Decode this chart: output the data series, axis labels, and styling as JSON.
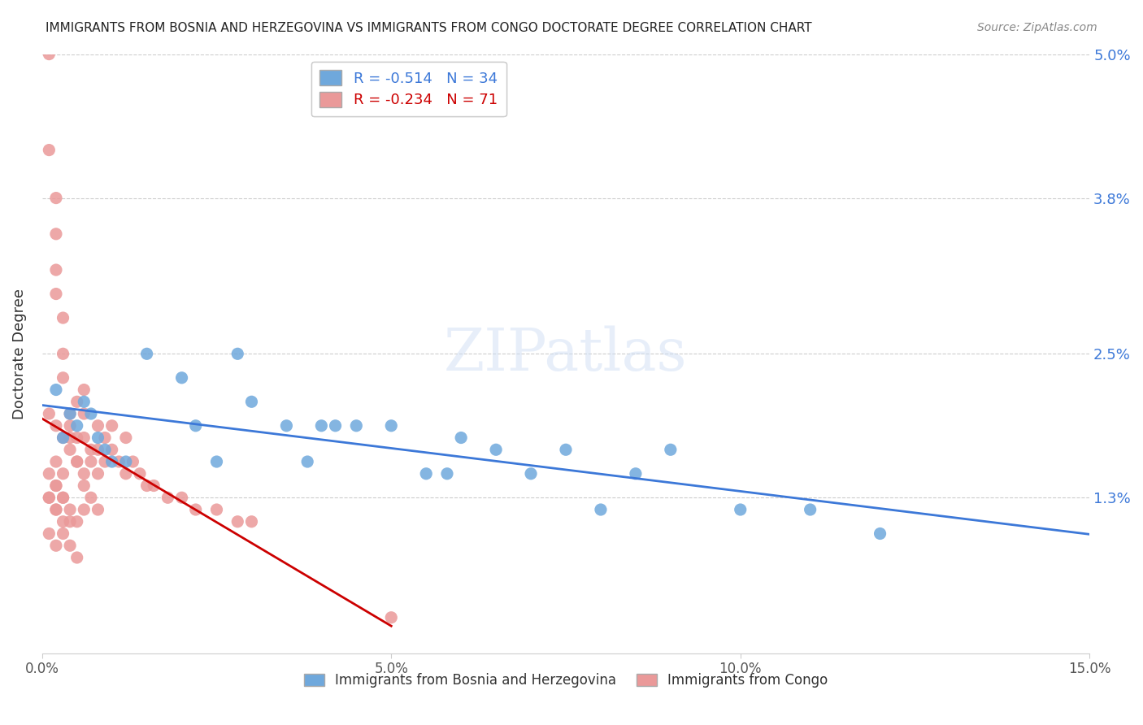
{
  "title": "IMMIGRANTS FROM BOSNIA AND HERZEGOVINA VS IMMIGRANTS FROM CONGO DOCTORATE DEGREE CORRELATION CHART",
  "source": "Source: ZipAtlas.com",
  "xlabel_bosnia": "Immigrants from Bosnia and Herzegovina",
  "xlabel_congo": "Immigrants from Congo",
  "ylabel": "Doctorate Degree",
  "xlim": [
    0.0,
    0.15
  ],
  "ylim": [
    0.0,
    0.05
  ],
  "yticks": [
    0.013,
    0.025,
    0.038,
    0.05
  ],
  "ytick_labels": [
    "1.3%",
    "2.5%",
    "3.8%",
    "5.0%"
  ],
  "xticks": [
    0.0,
    0.05,
    0.1,
    0.15
  ],
  "xtick_labels": [
    "0.0%",
    "5.0%",
    "10.0%",
    "15.0%"
  ],
  "blue_R": "-0.514",
  "blue_N": "34",
  "pink_R": "-0.234",
  "pink_N": "71",
  "blue_color": "#6fa8dc",
  "pink_color": "#ea9999",
  "blue_line_color": "#3c78d8",
  "pink_line_color": "#cc0000",
  "watermark": "ZIPatlas",
  "bosnia_x": [
    0.002,
    0.003,
    0.004,
    0.005,
    0.006,
    0.007,
    0.008,
    0.009,
    0.01,
    0.012,
    0.015,
    0.02,
    0.022,
    0.025,
    0.028,
    0.03,
    0.035,
    0.038,
    0.04,
    0.042,
    0.045,
    0.05,
    0.055,
    0.058,
    0.06,
    0.065,
    0.07,
    0.075,
    0.08,
    0.085,
    0.09,
    0.1,
    0.11,
    0.12
  ],
  "bosnia_y": [
    0.022,
    0.018,
    0.02,
    0.019,
    0.021,
    0.02,
    0.018,
    0.017,
    0.016,
    0.016,
    0.025,
    0.023,
    0.019,
    0.016,
    0.025,
    0.021,
    0.019,
    0.016,
    0.019,
    0.019,
    0.019,
    0.019,
    0.015,
    0.015,
    0.018,
    0.017,
    0.015,
    0.017,
    0.012,
    0.015,
    0.017,
    0.012,
    0.012,
    0.01
  ],
  "congo_x": [
    0.001,
    0.001,
    0.002,
    0.002,
    0.002,
    0.002,
    0.003,
    0.003,
    0.003,
    0.004,
    0.004,
    0.004,
    0.005,
    0.005,
    0.005,
    0.006,
    0.006,
    0.006,
    0.007,
    0.007,
    0.008,
    0.008,
    0.008,
    0.009,
    0.009,
    0.01,
    0.01,
    0.011,
    0.012,
    0.012,
    0.013,
    0.014,
    0.015,
    0.016,
    0.018,
    0.02,
    0.022,
    0.025,
    0.028,
    0.03,
    0.001,
    0.002,
    0.003,
    0.004,
    0.005,
    0.006,
    0.006,
    0.007,
    0.008,
    0.001,
    0.002,
    0.003,
    0.001,
    0.002,
    0.003,
    0.004,
    0.005,
    0.05,
    0.001,
    0.002,
    0.003,
    0.004,
    0.005,
    0.006,
    0.002,
    0.003,
    0.002,
    0.001,
    0.003,
    0.002,
    0.004
  ],
  "congo_y": [
    0.05,
    0.042,
    0.038,
    0.035,
    0.032,
    0.03,
    0.028,
    0.025,
    0.023,
    0.02,
    0.019,
    0.018,
    0.021,
    0.018,
    0.016,
    0.022,
    0.02,
    0.018,
    0.017,
    0.016,
    0.019,
    0.017,
    0.015,
    0.018,
    0.016,
    0.019,
    0.017,
    0.016,
    0.018,
    0.015,
    0.016,
    0.015,
    0.014,
    0.014,
    0.013,
    0.013,
    0.012,
    0.012,
    0.011,
    0.011,
    0.015,
    0.014,
    0.013,
    0.012,
    0.011,
    0.014,
    0.012,
    0.013,
    0.012,
    0.013,
    0.012,
    0.011,
    0.01,
    0.009,
    0.01,
    0.009,
    0.008,
    0.003,
    0.02,
    0.019,
    0.018,
    0.017,
    0.016,
    0.015,
    0.016,
    0.015,
    0.014,
    0.013,
    0.013,
    0.012,
    0.011
  ]
}
